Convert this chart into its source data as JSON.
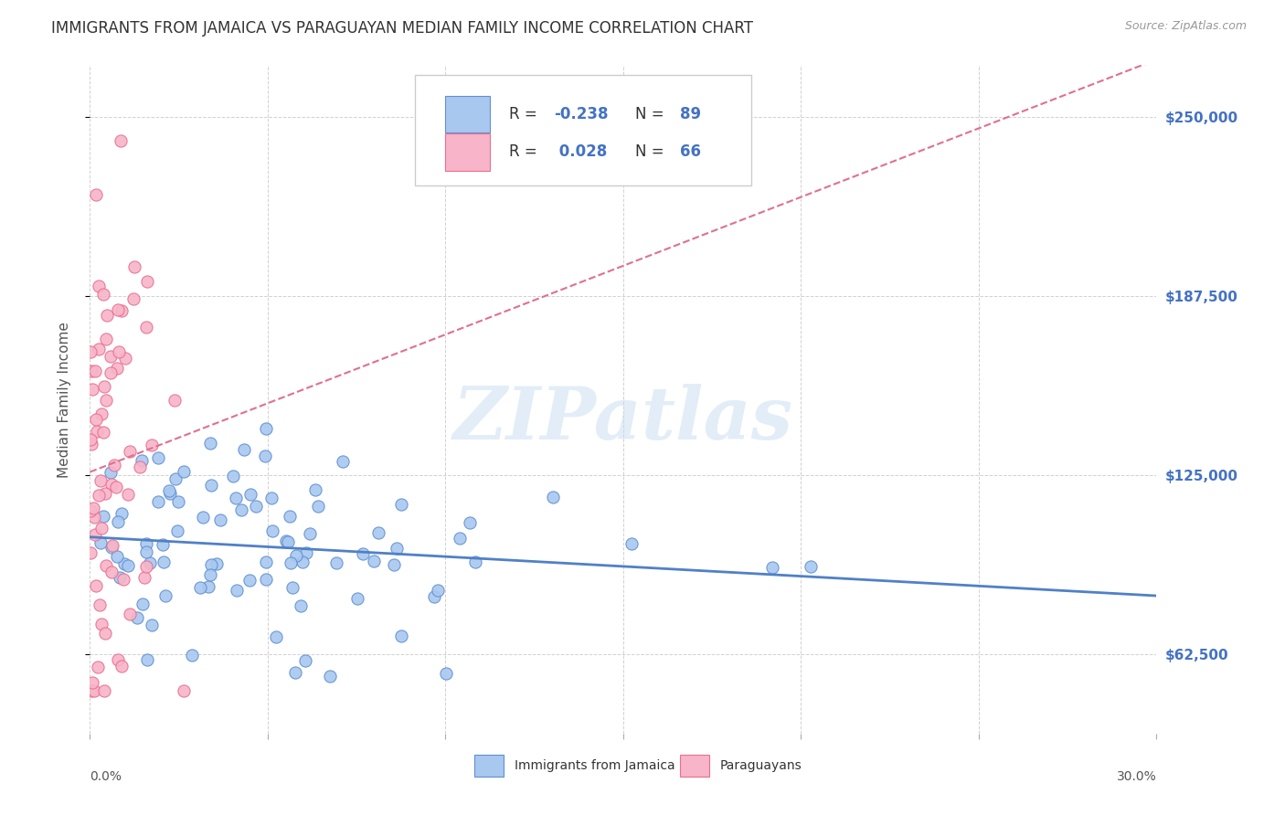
{
  "title": "IMMIGRANTS FROM JAMAICA VS PARAGUAYAN MEDIAN FAMILY INCOME CORRELATION CHART",
  "source": "Source: ZipAtlas.com",
  "ylabel": "Median Family Income",
  "watermark": "ZIPatlas",
  "blue_R": "-0.238",
  "blue_N": 89,
  "pink_R": "0.028",
  "pink_N": 66,
  "blue_color": "#a8c8f0",
  "pink_color": "#f8b4c8",
  "blue_edge_color": "#6090d0",
  "pink_edge_color": "#e87090",
  "blue_line_color": "#5080c8",
  "pink_line_color": "#e07090",
  "ytick_labels": [
    "$62,500",
    "$125,000",
    "$187,500",
    "$250,000"
  ],
  "ytick_values": [
    62500,
    125000,
    187500,
    250000
  ],
  "ylim": [
    35000,
    268000
  ],
  "xlim": [
    0.0,
    0.3
  ],
  "background_color": "#ffffff",
  "grid_color": "#cccccc",
  "right_label_color": "#4472c4",
  "title_fontsize": 12,
  "axis_label_fontsize": 11,
  "tick_fontsize": 10,
  "source_fontsize": 9
}
